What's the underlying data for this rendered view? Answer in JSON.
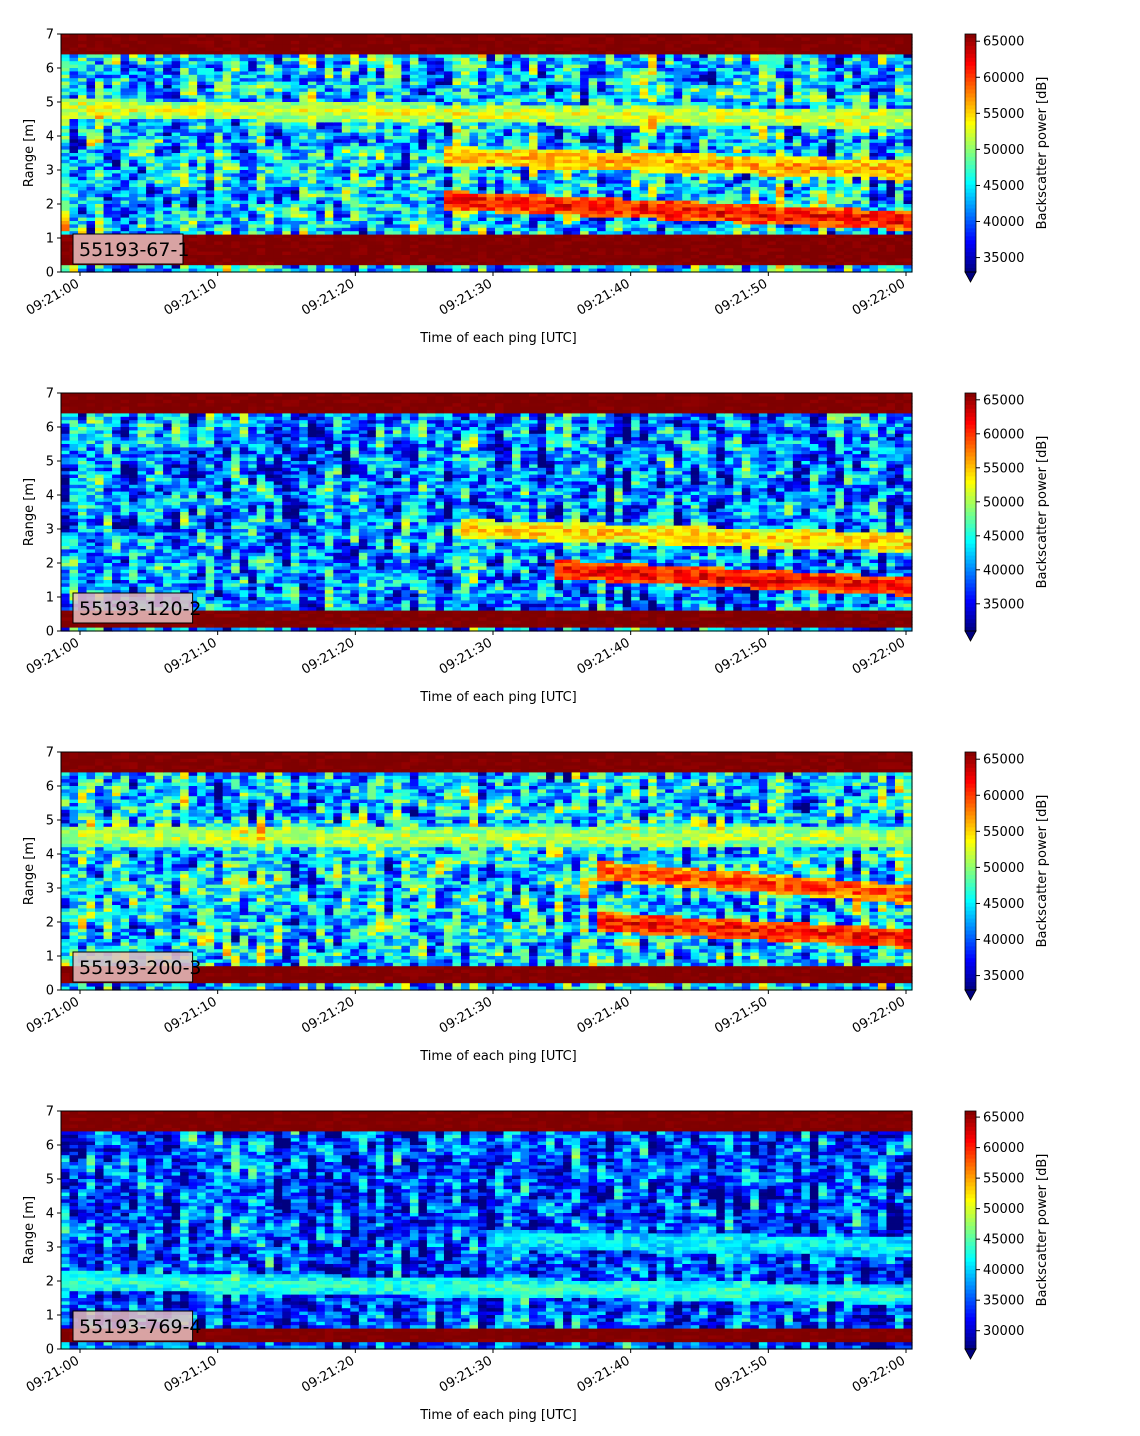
{
  "colors": {
    "jet": [
      "#00007f",
      "#0000ff",
      "#007fff",
      "#00ffff",
      "#7fff7f",
      "#ffff00",
      "#ff7f00",
      "#ff0000",
      "#7f0000"
    ],
    "label_box_bg": "#e8bfbf",
    "axis": "#000000"
  },
  "chart_data": [
    {
      "type": "heatmap",
      "panel_label": "55193-67-1",
      "xlabel": "Time of each ping [UTC]",
      "ylabel": "Range [m]",
      "x_ticks": [
        "09:21:00",
        "09:21:10",
        "09:21:20",
        "09:21:30",
        "09:21:40",
        "09:21:50",
        "09:22:00"
      ],
      "x_range_seconds": [
        0,
        60
      ],
      "y_ticks": [
        "0",
        "1",
        "2",
        "3",
        "4",
        "5",
        "6",
        "7"
      ],
      "ylim": [
        0,
        7
      ],
      "colorbar": {
        "label": "Backscatter power [dB]",
        "ticks": [
          "35000",
          "40000",
          "45000",
          "50000",
          "55000",
          "60000",
          "65000"
        ],
        "range": [
          33000,
          66000
        ],
        "extend": "min"
      },
      "features": [
        {
          "description_band": "surface",
          "y_range_m": [
            6.4,
            7.0
          ],
          "level": 66000
        },
        {
          "description_band": "near-sensor",
          "y_range_m": [
            0.2,
            1.1
          ],
          "level": 66000
        },
        {
          "description_band": "layer",
          "t_range_s": [
            27,
            60
          ],
          "y_start_m": 2.1,
          "y_end_m": 1.5,
          "level": 62000
        },
        {
          "description_band": "layer",
          "t_range_s": [
            27,
            60
          ],
          "y_start_m": 3.4,
          "y_end_m": 3.0,
          "level": 57000
        },
        {
          "description_band": "layer",
          "t_range_s": [
            0,
            60
          ],
          "y_start_m": 4.8,
          "y_end_m": 4.5,
          "level": 53000
        }
      ]
    },
    {
      "type": "heatmap",
      "panel_label": "55193-120-2",
      "xlabel": "Time of each ping [UTC]",
      "ylabel": "Range [m]",
      "x_ticks": [
        "09:21:00",
        "09:21:10",
        "09:21:20",
        "09:21:30",
        "09:21:40",
        "09:21:50",
        "09:22:00"
      ],
      "x_range_seconds": [
        0,
        60
      ],
      "y_ticks": [
        "0",
        "1",
        "2",
        "3",
        "4",
        "5",
        "6",
        "7"
      ],
      "ylim": [
        0,
        7
      ],
      "colorbar": {
        "label": "Backscatter power [dB]",
        "ticks": [
          "35000",
          "40000",
          "45000",
          "50000",
          "55000",
          "60000",
          "65000"
        ],
        "range": [
          31000,
          66000
        ],
        "extend": "min"
      },
      "features": [
        {
          "description_band": "surface",
          "y_range_m": [
            6.4,
            7.0
          ],
          "level": 66000
        },
        {
          "description_band": "near-sensor",
          "y_range_m": [
            0.1,
            0.6
          ],
          "level": 66000
        },
        {
          "description_band": "layer",
          "t_range_s": [
            35,
            60
          ],
          "y_start_m": 1.8,
          "y_end_m": 1.3,
          "level": 62000
        },
        {
          "description_band": "layer",
          "t_range_s": [
            28,
            60
          ],
          "y_start_m": 3.0,
          "y_end_m": 2.6,
          "level": 55000
        }
      ]
    },
    {
      "type": "heatmap",
      "panel_label": "55193-200-3",
      "xlabel": "Time of each ping [UTC]",
      "ylabel": "Range [m]",
      "x_ticks": [
        "09:21:00",
        "09:21:10",
        "09:21:20",
        "09:21:30",
        "09:21:40",
        "09:21:50",
        "09:22:00"
      ],
      "x_range_seconds": [
        0,
        60
      ],
      "y_ticks": [
        "0",
        "1",
        "2",
        "3",
        "4",
        "5",
        "6",
        "7"
      ],
      "ylim": [
        0,
        7
      ],
      "colorbar": {
        "label": "Backscatter power [dB]",
        "ticks": [
          "35000",
          "40000",
          "45000",
          "50000",
          "55000",
          "60000",
          "65000"
        ],
        "range": [
          33000,
          66000
        ],
        "extend": "min"
      },
      "features": [
        {
          "description_band": "surface",
          "y_range_m": [
            6.4,
            7.0
          ],
          "level": 66000
        },
        {
          "description_band": "near-sensor",
          "y_range_m": [
            0.2,
            0.7
          ],
          "level": 66000
        },
        {
          "description_band": "layer",
          "t_range_s": [
            38,
            60
          ],
          "y_start_m": 2.0,
          "y_end_m": 1.5,
          "level": 62000
        },
        {
          "description_band": "layer",
          "t_range_s": [
            38,
            60
          ],
          "y_start_m": 3.5,
          "y_end_m": 2.8,
          "level": 60000
        },
        {
          "description_band": "layer",
          "t_range_s": [
            0,
            60
          ],
          "y_start_m": 4.5,
          "y_end_m": 4.5,
          "level": 52000
        }
      ]
    },
    {
      "type": "heatmap",
      "panel_label": "55193-769-4",
      "xlabel": "Time of each ping [UTC]",
      "ylabel": "Range [m]",
      "x_ticks": [
        "09:21:00",
        "09:21:10",
        "09:21:20",
        "09:21:30",
        "09:21:40",
        "09:21:50",
        "09:22:00"
      ],
      "x_range_seconds": [
        0,
        60
      ],
      "y_ticks": [
        "0",
        "1",
        "2",
        "3",
        "4",
        "5",
        "6",
        "7"
      ],
      "ylim": [
        0,
        7
      ],
      "colorbar": {
        "label": "Backscatter power [dB]",
        "ticks": [
          "30000",
          "35000",
          "40000",
          "45000",
          "50000",
          "55000",
          "60000",
          "65000"
        ],
        "range": [
          27000,
          66000
        ],
        "extend": "min"
      },
      "features": [
        {
          "description_band": "surface",
          "y_range_m": [
            6.4,
            7.0
          ],
          "level": 66000
        },
        {
          "description_band": "near-sensor",
          "y_range_m": [
            0.2,
            0.6
          ],
          "level": 66000
        },
        {
          "description_band": "layer",
          "t_range_s": [
            0,
            60
          ],
          "y_start_m": 2.0,
          "y_end_m": 1.6,
          "level": 44000
        },
        {
          "description_band": "layer",
          "t_range_s": [
            30,
            60
          ],
          "y_start_m": 3.2,
          "y_end_m": 3.0,
          "level": 42000
        }
      ]
    }
  ]
}
